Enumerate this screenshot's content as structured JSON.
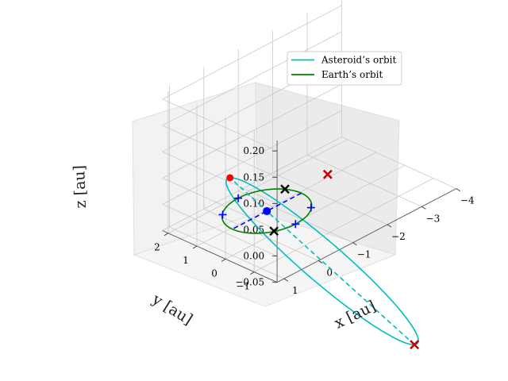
{
  "chart_data": {
    "type": "line",
    "subtype": "3d-orbit",
    "title": "",
    "xlabel": "$x$ [au]",
    "ylabel": "$y$ [au]",
    "zlabel": "$z$ [au]",
    "xlabel_text": "x [au]",
    "ylabel_text": "y [au]",
    "zlabel_text": "z [au]",
    "xlim": [
      -4,
      1.2
    ],
    "ylim": [
      -1.8,
      2.2
    ],
    "zlim": [
      -0.05,
      0.22
    ],
    "xticks": [
      "−4",
      "−3",
      "−2",
      "−1",
      "0",
      "1"
    ],
    "yticks": [
      "−1",
      "0",
      "1",
      "2"
    ],
    "zticks": [
      "−0.05",
      "0.00",
      "0.05",
      "0.10",
      "0.15",
      "0.20"
    ],
    "grid": true,
    "legend_position": "top-right",
    "series": [
      {
        "name": "Asteroid’s orbit",
        "color": "#00bfbf",
        "orbit": {
          "a": 2.2,
          "e": 0.6,
          "inclination_deg": 4.5,
          "node_deg": 300,
          "perihelion_deg": 120
        },
        "style": "solid"
      },
      {
        "name": "Earth’s orbit",
        "color": "#008000",
        "orbit": {
          "a": 1.0,
          "e": 0.0,
          "inclination_deg": 0,
          "node_deg": 0,
          "perihelion_deg": 0
        },
        "style": "solid"
      }
    ],
    "markers": {
      "sun_color": "#0000ff",
      "asteroid_point_color": "#ff0000",
      "cross_color": "#000000",
      "cross_red": "#cc0000",
      "plus_color": "#0000ff",
      "dashed_line_asteroid": "#00bfbf",
      "dashed_line_blue": "#0000ff"
    }
  },
  "legend": {
    "asteroid_label": "Asteroid’s orbit",
    "earth_label": "Earth’s orbit"
  }
}
